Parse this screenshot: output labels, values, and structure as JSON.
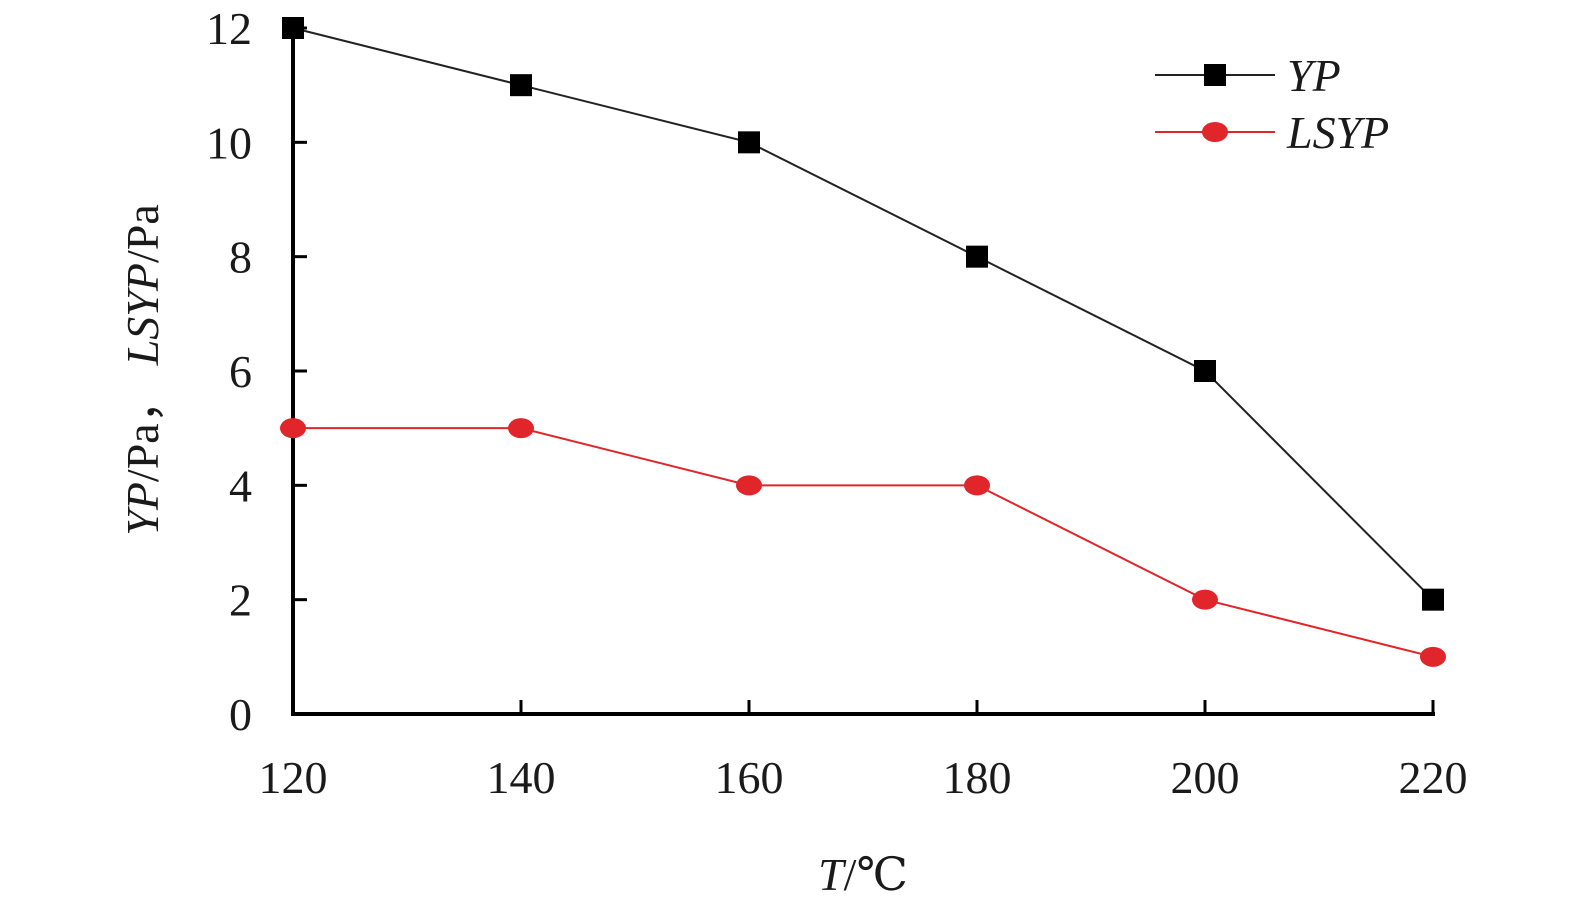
{
  "chart_data": {
    "type": "line",
    "title": "",
    "x": [
      120,
      140,
      160,
      180,
      200,
      220
    ],
    "x_ticks": [
      "120",
      "140",
      "160",
      "180",
      "200",
      "220"
    ],
    "y_ticks": [
      "0",
      "2",
      "4",
      "6",
      "8",
      "10",
      "12"
    ],
    "xlim": [
      120,
      220
    ],
    "ylim": [
      0,
      12
    ],
    "xlabel": {
      "var": "T",
      "unit": "/℃"
    },
    "ylabel": {
      "var1": "YP",
      "unit1": "/Pa，",
      "var2": "LSYP",
      "unit2": "/Pa"
    },
    "grid": false,
    "legend_position": "top-right",
    "series": [
      {
        "name": "YP",
        "marker": "square",
        "color": "#000000",
        "line_color": "#222222",
        "values": [
          12,
          11,
          10,
          8,
          6,
          2
        ]
      },
      {
        "name": "LSYP",
        "marker": "circle",
        "color": "#e0262b",
        "line_color": "#e0262b",
        "values": [
          5,
          5,
          4,
          4,
          2,
          1
        ]
      }
    ]
  }
}
